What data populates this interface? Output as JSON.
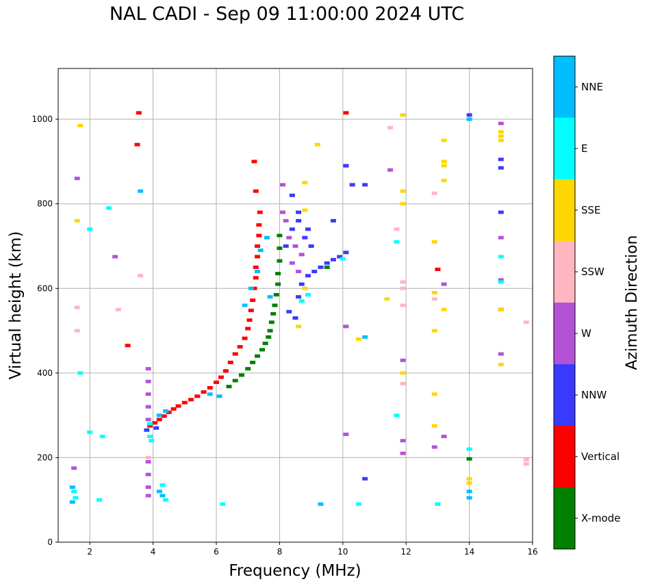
{
  "chart_data": {
    "type": "scatter",
    "title": "NAL CADI - Sep 09 11:00:00 2024 UTC",
    "xlabel": "Frequency (MHz)",
    "ylabel": "Virtual height (km)",
    "xlim": [
      1,
      16
    ],
    "ylim": [
      0,
      1120
    ],
    "xticks": [
      2,
      4,
      6,
      8,
      10,
      12,
      14,
      16
    ],
    "yticks": [
      0,
      200,
      400,
      600,
      800,
      1000
    ],
    "grid": true,
    "colorbar": {
      "label": "Azimuth Direction",
      "categories": [
        {
          "name": "X-mode",
          "color": "#008000"
        },
        {
          "name": "Vertical",
          "color": "#ff0000"
        },
        {
          "name": "NNW",
          "color": "#3a3aff"
        },
        {
          "name": "W",
          "color": "#b452d6"
        },
        {
          "name": "SSW",
          "color": "#ffb6c1"
        },
        {
          "name": "SSE",
          "color": "#ffd700"
        },
        {
          "name": "E",
          "color": "#00ffff"
        },
        {
          "name": "NNE",
          "color": "#00bfff"
        }
      ]
    },
    "series": [
      {
        "name": "Vertical",
        "points": [
          [
            3.9,
            275
          ],
          [
            4.05,
            282
          ],
          [
            4.2,
            290
          ],
          [
            4.35,
            298
          ],
          [
            4.5,
            307
          ],
          [
            4.65,
            315
          ],
          [
            4.8,
            322
          ],
          [
            5.0,
            330
          ],
          [
            5.2,
            337
          ],
          [
            5.4,
            345
          ],
          [
            5.6,
            355
          ],
          [
            5.8,
            365
          ],
          [
            6.0,
            378
          ],
          [
            6.15,
            390
          ],
          [
            6.3,
            405
          ],
          [
            6.45,
            425
          ],
          [
            6.6,
            445
          ],
          [
            6.75,
            462
          ],
          [
            6.9,
            482
          ],
          [
            7.0,
            505
          ],
          [
            7.05,
            525
          ],
          [
            7.1,
            548
          ],
          [
            7.15,
            572
          ],
          [
            7.2,
            600
          ],
          [
            7.25,
            625
          ],
          [
            7.25,
            650
          ],
          [
            7.3,
            675
          ],
          [
            7.3,
            700
          ],
          [
            7.35,
            725
          ],
          [
            7.35,
            750
          ],
          [
            7.38,
            780
          ],
          [
            7.25,
            830
          ],
          [
            7.2,
            900
          ],
          [
            3.5,
            940
          ],
          [
            3.55,
            1015
          ],
          [
            3.2,
            465
          ],
          [
            10.1,
            890
          ],
          [
            10.1,
            1015
          ],
          [
            13.0,
            645
          ]
        ]
      },
      {
        "name": "X-mode",
        "points": [
          [
            6.4,
            368
          ],
          [
            6.6,
            382
          ],
          [
            6.8,
            395
          ],
          [
            7.0,
            410
          ],
          [
            7.15,
            425
          ],
          [
            7.3,
            440
          ],
          [
            7.45,
            455
          ],
          [
            7.55,
            470
          ],
          [
            7.65,
            485
          ],
          [
            7.7,
            500
          ],
          [
            7.75,
            520
          ],
          [
            7.8,
            540
          ],
          [
            7.85,
            560
          ],
          [
            7.9,
            585
          ],
          [
            7.95,
            610
          ],
          [
            7.95,
            635
          ],
          [
            8.0,
            665
          ],
          [
            8.0,
            695
          ],
          [
            8.0,
            725
          ],
          [
            9.5,
            650
          ],
          [
            14.0,
            197
          ]
        ]
      },
      {
        "name": "NNW",
        "points": [
          [
            8.3,
            545
          ],
          [
            8.5,
            530
          ],
          [
            8.6,
            580
          ],
          [
            8.7,
            610
          ],
          [
            8.9,
            630
          ],
          [
            9.1,
            640
          ],
          [
            9.3,
            650
          ],
          [
            9.5,
            660
          ],
          [
            9.7,
            668
          ],
          [
            9.9,
            675
          ],
          [
            10.1,
            685
          ],
          [
            8.2,
            700
          ],
          [
            8.4,
            740
          ],
          [
            8.6,
            760
          ],
          [
            8.8,
            720
          ],
          [
            9.0,
            700
          ],
          [
            8.4,
            820
          ],
          [
            8.6,
            780
          ],
          [
            8.9,
            740
          ],
          [
            9.7,
            760
          ],
          [
            10.3,
            845
          ],
          [
            10.7,
            845
          ],
          [
            10.1,
            890
          ],
          [
            14.0,
            1010
          ],
          [
            15.0,
            905
          ],
          [
            15.0,
            885
          ],
          [
            15.0,
            780
          ],
          [
            3.8,
            265
          ],
          [
            4.1,
            270
          ],
          [
            10.7,
            150
          ],
          [
            15.0,
            550
          ]
        ]
      },
      {
        "name": "W",
        "points": [
          [
            3.85,
            410
          ],
          [
            3.85,
            380
          ],
          [
            3.85,
            350
          ],
          [
            3.85,
            320
          ],
          [
            3.85,
            290
          ],
          [
            3.85,
            190
          ],
          [
            3.85,
            160
          ],
          [
            3.85,
            130
          ],
          [
            3.85,
            110
          ],
          [
            8.1,
            845
          ],
          [
            8.1,
            780
          ],
          [
            8.2,
            760
          ],
          [
            8.3,
            720
          ],
          [
            8.5,
            700
          ],
          [
            8.7,
            680
          ],
          [
            8.4,
            660
          ],
          [
            8.6,
            640
          ],
          [
            11.9,
            1010
          ],
          [
            11.9,
            430
          ],
          [
            11.9,
            240
          ],
          [
            11.9,
            210
          ],
          [
            13.2,
            610
          ],
          [
            13.2,
            250
          ],
          [
            12.9,
            225
          ],
          [
            15.0,
            990
          ],
          [
            15.0,
            720
          ],
          [
            15.0,
            620
          ],
          [
            15.0,
            445
          ],
          [
            10.1,
            255
          ],
          [
            10.1,
            510
          ],
          [
            11.5,
            880
          ],
          [
            2.8,
            675
          ],
          [
            1.5,
            175
          ],
          [
            1.6,
            860
          ]
        ]
      },
      {
        "name": "SSW",
        "points": [
          [
            3.6,
            630
          ],
          [
            3.85,
            200
          ],
          [
            11.9,
            615
          ],
          [
            11.9,
            600
          ],
          [
            11.9,
            375
          ],
          [
            11.9,
            560
          ],
          [
            12.9,
            575
          ],
          [
            12.9,
            825
          ],
          [
            15.8,
            520
          ],
          [
            15.8,
            195
          ],
          [
            15.8,
            185
          ],
          [
            11.7,
            740
          ],
          [
            11.5,
            980
          ],
          [
            2.9,
            550
          ],
          [
            1.6,
            555
          ],
          [
            1.6,
            500
          ]
        ]
      },
      {
        "name": "SSE",
        "points": [
          [
            8.8,
            785
          ],
          [
            8.8,
            850
          ],
          [
            8.8,
            600
          ],
          [
            8.6,
            510
          ],
          [
            9.2,
            940
          ],
          [
            11.9,
            800
          ],
          [
            11.9,
            830
          ],
          [
            11.9,
            1010
          ],
          [
            11.9,
            400
          ],
          [
            12.9,
            710
          ],
          [
            12.9,
            590
          ],
          [
            12.9,
            500
          ],
          [
            12.9,
            350
          ],
          [
            12.9,
            275
          ],
          [
            13.2,
            950
          ],
          [
            13.2,
            900
          ],
          [
            13.2,
            890
          ],
          [
            13.2,
            855
          ],
          [
            13.2,
            550
          ],
          [
            15.0,
            970
          ],
          [
            15.0,
            960
          ],
          [
            15.0,
            950
          ],
          [
            15.0,
            550
          ],
          [
            15.0,
            420
          ],
          [
            14.0,
            150
          ],
          [
            14.0,
            140
          ],
          [
            10.5,
            480
          ],
          [
            11.4,
            575
          ],
          [
            1.7,
            985
          ],
          [
            1.6,
            760
          ]
        ]
      },
      {
        "name": "E",
        "points": [
          [
            3.9,
            280
          ],
          [
            3.9,
            250
          ],
          [
            3.95,
            240
          ],
          [
            4.3,
            135
          ],
          [
            4.4,
            100
          ],
          [
            2.0,
            260
          ],
          [
            2.3,
            100
          ],
          [
            1.5,
            120
          ],
          [
            1.55,
            105
          ],
          [
            8.7,
            570
          ],
          [
            8.9,
            585
          ],
          [
            10.0,
            670
          ],
          [
            11.7,
            710
          ],
          [
            11.7,
            300
          ],
          [
            14.0,
            220
          ],
          [
            15.0,
            675
          ],
          [
            15.0,
            615
          ],
          [
            13.0,
            90
          ],
          [
            10.5,
            90
          ],
          [
            6.2,
            90
          ],
          [
            2.4,
            250
          ],
          [
            2.6,
            790
          ],
          [
            2.0,
            740
          ],
          [
            1.7,
            400
          ]
        ]
      },
      {
        "name": "NNE",
        "points": [
          [
            4.4,
            310
          ],
          [
            4.2,
            300
          ],
          [
            5.8,
            350
          ],
          [
            6.1,
            345
          ],
          [
            6.9,
            560
          ],
          [
            7.1,
            600
          ],
          [
            7.3,
            640
          ],
          [
            7.4,
            690
          ],
          [
            7.6,
            720
          ],
          [
            7.7,
            580
          ],
          [
            14.0,
            1000
          ],
          [
            14.0,
            120
          ],
          [
            14.0,
            105
          ],
          [
            10.7,
            485
          ],
          [
            9.3,
            90
          ],
          [
            1.45,
            130
          ],
          [
            1.45,
            95
          ],
          [
            4.2,
            120
          ],
          [
            4.3,
            110
          ],
          [
            3.6,
            830
          ]
        ]
      }
    ]
  }
}
